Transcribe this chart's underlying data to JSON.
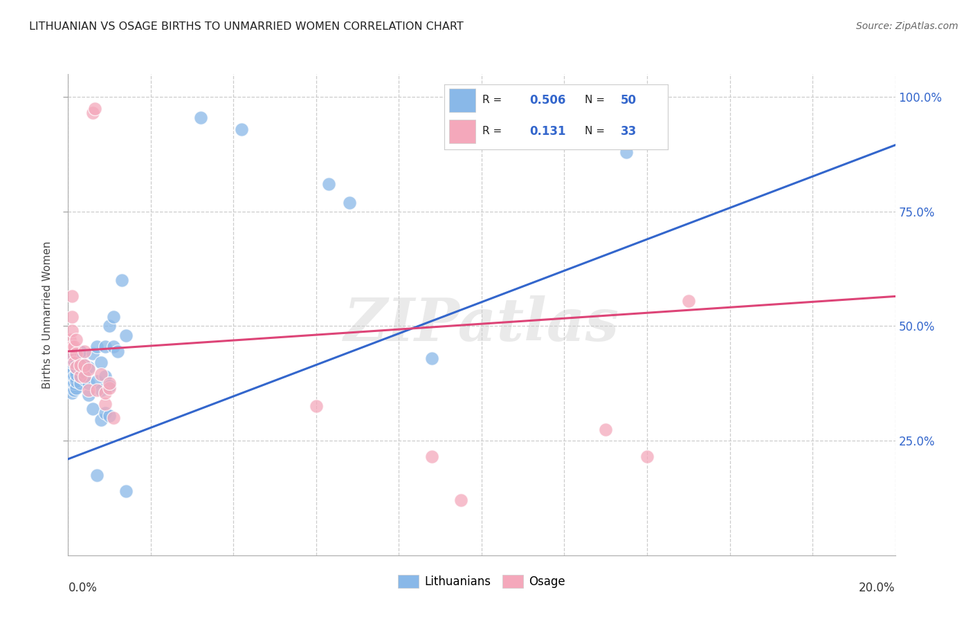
{
  "title": "LITHUANIAN VS OSAGE BIRTHS TO UNMARRIED WOMEN CORRELATION CHART",
  "source": "Source: ZipAtlas.com",
  "ylabel": "Births to Unmarried Women",
  "xmin": 0.0,
  "xmax": 0.2,
  "ymin": 0.0,
  "ymax": 1.05,
  "ytick_vals": [
    0.25,
    0.5,
    0.75,
    1.0
  ],
  "ytick_labels": [
    "25.0%",
    "50.0%",
    "75.0%",
    "100.0%"
  ],
  "watermark": "ZIPatlas",
  "blue_color": "#89b8e8",
  "blue_line_color": "#3366cc",
  "pink_color": "#f4a8bb",
  "pink_line_color": "#dd4477",
  "legend_text_color": "#3366cc",
  "grid_color": "#cccccc",
  "bg_color": "#ffffff",
  "blue_scatter": [
    [
      0.0005,
      0.365
    ],
    [
      0.0005,
      0.38
    ],
    [
      0.0005,
      0.395
    ],
    [
      0.001,
      0.355
    ],
    [
      0.001,
      0.37
    ],
    [
      0.001,
      0.385
    ],
    [
      0.001,
      0.4
    ],
    [
      0.001,
      0.42
    ],
    [
      0.001,
      0.43
    ],
    [
      0.0015,
      0.36
    ],
    [
      0.0015,
      0.375
    ],
    [
      0.0015,
      0.39
    ],
    [
      0.002,
      0.365
    ],
    [
      0.002,
      0.38
    ],
    [
      0.002,
      0.395
    ],
    [
      0.002,
      0.41
    ],
    [
      0.002,
      0.425
    ],
    [
      0.002,
      0.44
    ],
    [
      0.003,
      0.375
    ],
    [
      0.003,
      0.39
    ],
    [
      0.003,
      0.405
    ],
    [
      0.003,
      0.42
    ],
    [
      0.003,
      0.435
    ],
    [
      0.003,
      0.445
    ],
    [
      0.004,
      0.385
    ],
    [
      0.004,
      0.4
    ],
    [
      0.004,
      0.415
    ],
    [
      0.005,
      0.35
    ],
    [
      0.005,
      0.375
    ],
    [
      0.005,
      0.41
    ],
    [
      0.006,
      0.32
    ],
    [
      0.006,
      0.44
    ],
    [
      0.007,
      0.175
    ],
    [
      0.007,
      0.38
    ],
    [
      0.007,
      0.455
    ],
    [
      0.008,
      0.295
    ],
    [
      0.008,
      0.36
    ],
    [
      0.008,
      0.42
    ],
    [
      0.009,
      0.31
    ],
    [
      0.009,
      0.39
    ],
    [
      0.009,
      0.455
    ],
    [
      0.01,
      0.305
    ],
    [
      0.01,
      0.37
    ],
    [
      0.01,
      0.5
    ],
    [
      0.011,
      0.455
    ],
    [
      0.011,
      0.52
    ],
    [
      0.012,
      0.445
    ],
    [
      0.013,
      0.6
    ],
    [
      0.014,
      0.14
    ],
    [
      0.014,
      0.48
    ],
    [
      0.032,
      0.955
    ],
    [
      0.042,
      0.93
    ],
    [
      0.063,
      0.81
    ],
    [
      0.068,
      0.77
    ],
    [
      0.088,
      0.43
    ],
    [
      0.135,
      0.88
    ]
  ],
  "pink_scatter": [
    [
      0.0005,
      0.44
    ],
    [
      0.0005,
      0.47
    ],
    [
      0.001,
      0.455
    ],
    [
      0.001,
      0.49
    ],
    [
      0.001,
      0.52
    ],
    [
      0.001,
      0.565
    ],
    [
      0.0015,
      0.42
    ],
    [
      0.0015,
      0.455
    ],
    [
      0.002,
      0.41
    ],
    [
      0.002,
      0.44
    ],
    [
      0.002,
      0.47
    ],
    [
      0.003,
      0.39
    ],
    [
      0.003,
      0.415
    ],
    [
      0.004,
      0.39
    ],
    [
      0.004,
      0.415
    ],
    [
      0.004,
      0.445
    ],
    [
      0.005,
      0.36
    ],
    [
      0.005,
      0.405
    ],
    [
      0.006,
      0.965
    ],
    [
      0.0065,
      0.975
    ],
    [
      0.007,
      0.36
    ],
    [
      0.008,
      0.395
    ],
    [
      0.009,
      0.33
    ],
    [
      0.009,
      0.355
    ],
    [
      0.01,
      0.365
    ],
    [
      0.01,
      0.375
    ],
    [
      0.011,
      0.3
    ],
    [
      0.06,
      0.325
    ],
    [
      0.088,
      0.215
    ],
    [
      0.095,
      0.12
    ],
    [
      0.13,
      0.275
    ],
    [
      0.14,
      0.215
    ],
    [
      0.15,
      0.555
    ]
  ],
  "blue_line_x": [
    0.0,
    0.2
  ],
  "blue_line_y": [
    0.21,
    0.895
  ],
  "pink_line_x": [
    0.0,
    0.2
  ],
  "pink_line_y": [
    0.445,
    0.565
  ]
}
